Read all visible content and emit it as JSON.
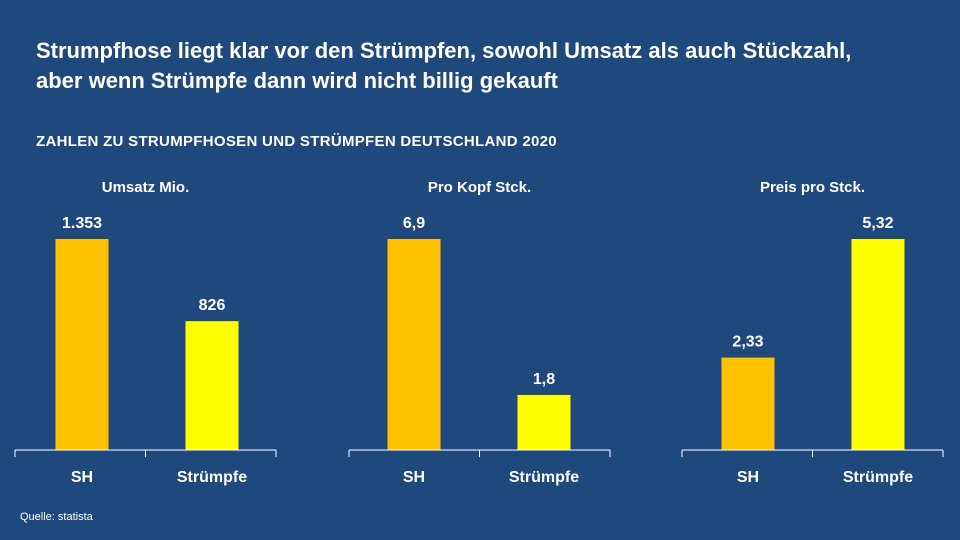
{
  "title_line1": "Strumpfhose liegt klar vor den Strümpfen, sowohl Umsatz als auch Stückzahl,",
  "title_line2": "aber wenn Strümpfe dann wird nicht billig gekauft",
  "subtitle": "ZAHLEN ZU STRUMPFHOSEN UND STRÜMPFEN DEUTSCHLAND  2020",
  "source": "Quelle: statista",
  "colors": {
    "background": "#1f497d",
    "sh": "#ffc000",
    "struempfe": "#ffff00"
  },
  "chart_data": [
    {
      "type": "bar",
      "title": "Umsatz Mio.",
      "categories": [
        "SH",
        "Strümpfe"
      ],
      "values": [
        1353,
        826
      ],
      "labels": [
        "1.353",
        "826"
      ],
      "ylim": [
        0,
        1353
      ]
    },
    {
      "type": "bar",
      "title": "Pro Kopf Stck.",
      "categories": [
        "SH",
        "Strümpfe"
      ],
      "values": [
        6.9,
        1.8
      ],
      "labels": [
        "6,9",
        "1,8"
      ],
      "ylim": [
        0,
        6.9
      ]
    },
    {
      "type": "bar",
      "title": "Preis pro Stck.",
      "categories": [
        "SH",
        "Strümpfe"
      ],
      "values": [
        2.33,
        5.32
      ],
      "labels": [
        "2,33",
        "5,32"
      ],
      "ylim": [
        0,
        5.32
      ]
    }
  ]
}
